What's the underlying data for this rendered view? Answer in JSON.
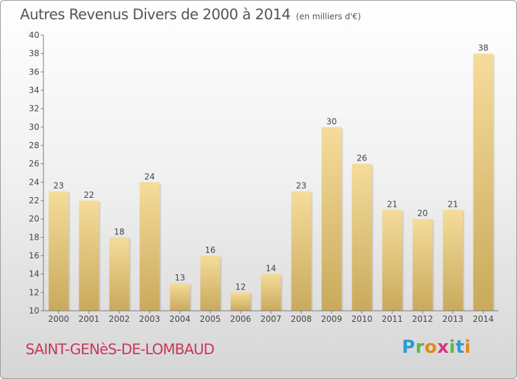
{
  "header": {
    "title": "Autres Revenus Divers de 2000 à 2014",
    "unit": "(en milliers d'€)"
  },
  "footer": {
    "commune": "SAINT-GENèS-DE-LOMBAUD",
    "logo_letters": [
      "P",
      "r",
      "o",
      "x",
      "i",
      "t",
      "i"
    ]
  },
  "colors": {
    "bar_top": "#f5dc9a",
    "bar_bottom": "#c9aa5c",
    "commune_text": "#c8375c",
    "axis": "#777777"
  },
  "chart_data": {
    "type": "bar",
    "title": "Autres Revenus Divers de 2000 à 2014",
    "subtitle": "(en milliers d'€)",
    "xlabel": "",
    "ylabel": "",
    "categories": [
      "2000",
      "2001",
      "2002",
      "2003",
      "2004",
      "2005",
      "2006",
      "2007",
      "2008",
      "2009",
      "2010",
      "2011",
      "2012",
      "2013",
      "2014"
    ],
    "values": [
      23,
      22,
      18,
      24,
      13,
      16,
      12,
      14,
      23,
      30,
      26,
      21,
      20,
      21,
      38
    ],
    "ylim": [
      10,
      40
    ],
    "yticks": [
      10,
      12,
      14,
      16,
      18,
      20,
      22,
      24,
      26,
      28,
      30,
      32,
      34,
      36,
      38,
      40
    ],
    "grid": false,
    "legend": "none",
    "data_labels": true
  }
}
